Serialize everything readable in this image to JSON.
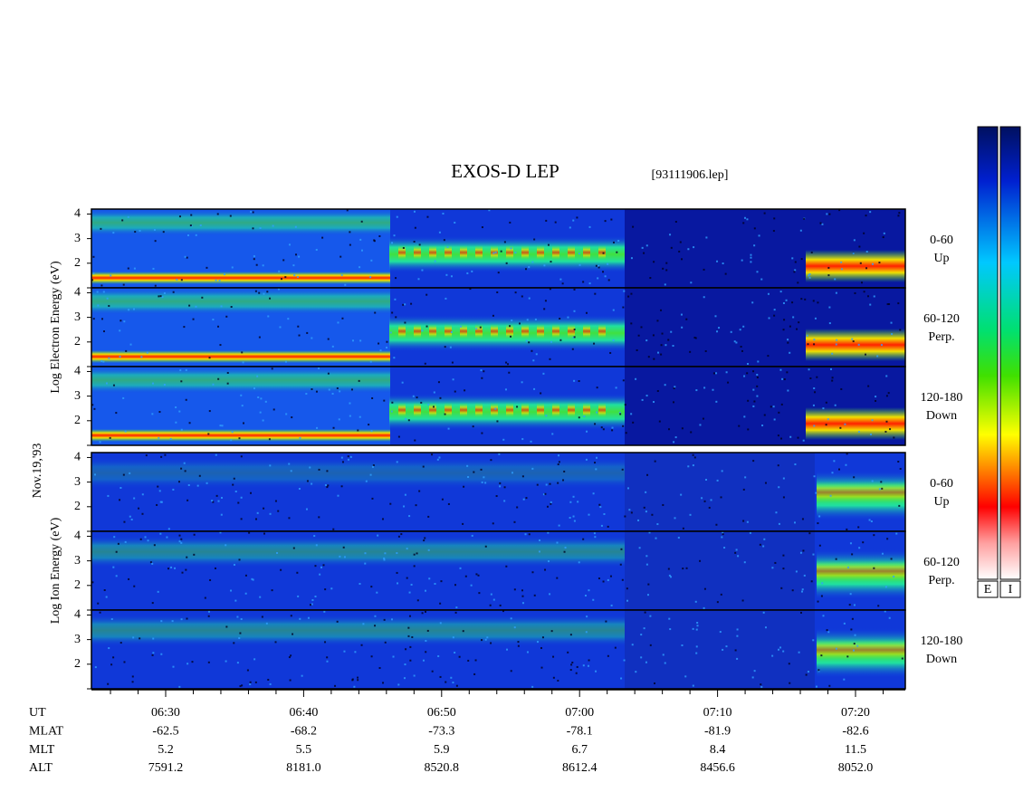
{
  "chart_data": {
    "type": "spectrogram",
    "title": "EXOS-D LEP",
    "file": "[93111906.lep]",
    "date_label": "Nov.19,'93",
    "ylim": [
      1,
      4.2
    ],
    "yticks": [
      2,
      3,
      4
    ],
    "groups": [
      {
        "ylabel": "Log  Electron  Energy (eV)",
        "panels": [
          {
            "label": [
              "0-60",
              "Up"
            ]
          },
          {
            "label": [
              "60-120",
              "Perp."
            ]
          },
          {
            "label": [
              "120-180",
              "Down"
            ]
          }
        ]
      },
      {
        "ylabel": "Log  Ion  Energy (eV)",
        "panels": [
          {
            "label": [
              "0-60",
              "Up"
            ]
          },
          {
            "label": [
              "60-120",
              "Perp."
            ]
          },
          {
            "label": [
              "120-180",
              "Down"
            ]
          }
        ]
      }
    ],
    "rows": [
      {
        "name": "UT",
        "values": [
          "06:30",
          "06:40",
          "06:50",
          "07:00",
          "07:10",
          "07:20"
        ]
      },
      {
        "name": "MLAT",
        "values": [
          -62.5,
          -68.2,
          -73.3,
          -78.1,
          -81.9,
          -82.6
        ]
      },
      {
        "name": "MLT",
        "values": [
          5.2,
          5.5,
          5.9,
          6.7,
          8.4,
          11.5
        ]
      },
      {
        "name": "ALT",
        "values": [
          7591.2,
          8181.0,
          8520.8,
          8612.4,
          8456.6,
          8052.0
        ],
        "value_labels": [
          "7591.2",
          "8181.0",
          "8520.8",
          "8612.4",
          "8456.6",
          "8052.0"
        ]
      }
    ],
    "colorbars": [
      "E",
      "I"
    ]
  }
}
